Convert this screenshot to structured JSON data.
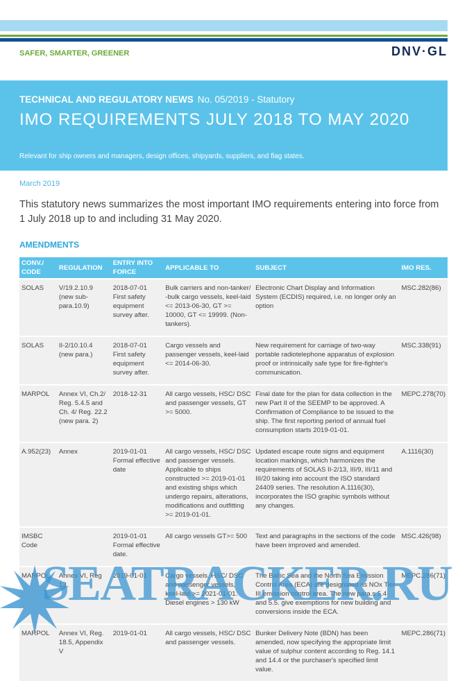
{
  "header": {
    "tagline": "SAFER, SMARTER, GREENER",
    "logo": "DNV·GL"
  },
  "banner": {
    "series": "TECHNICAL AND REGULATORY NEWS",
    "issue": "No. 05/2019  -  Statutory",
    "title": "IMO REQUIREMENTS JULY 2018 TO MAY 2020",
    "relevant": "Relevant for ship owners and managers, design offices, shipyards, suppliers, and flag states."
  },
  "date": "March 2019",
  "intro": "This statutory news summarizes the most important IMO requirements entering into force from 1 July 2018 up to and including 31 May 2020.",
  "section": "AMENDMENTS",
  "table": {
    "headers": [
      "CONV./ CODE",
      "REGULATION",
      "ENTRY INTO FORCE",
      "APPLICABLE TO",
      "SUBJECT",
      "IMO RES."
    ],
    "rows": [
      [
        "SOLAS",
        "V/19.2.10.9 (new sub-para.10.9)",
        "2018-07-01 First safety equipment survey after.",
        "Bulk carriers and non-tanker/ -bulk cargo vessels, keel-laid <= 2013-06-30, GT >= 10000, GT <= 19999. (Non-tankers).",
        "Electronic Chart Display and Information System (ECDIS) required, i.e. no longer only an option",
        "MSC.282(86)"
      ],
      [
        "SOLAS",
        "II-2/10.10.4 (new para.)",
        "2018-07-01 First safety equipment survey after.",
        "Cargo vessels and passenger vessels, keel-laid <= 2014-06-30.",
        "New requirement for carriage of two-way portable radiotelephone apparatus of explosion proof or intrinsically safe type for fire-fighter's communication.",
        "MSC.338(91)"
      ],
      [
        "MARPOL",
        "Annex VI, Ch.2/ Reg. 5.4.5 and Ch. 4/ Reg. 22.2 (new para. 2)",
        "2018-12-31",
        "All cargo vessels, HSC/ DSC and passenger vessels, GT >= 5000.",
        "Final date for the plan for data collection in the new Part II of the SEEMP to be approved. A Confirmation of Compliance to be issued to the ship. The first reporting period of annual fuel consumption starts 2019-01-01.",
        "MEPC.278(70)"
      ],
      [
        "A.952(23)",
        "Annex",
        "2019-01-01 Formal effective date",
        "All cargo vessels, HSC/ DSC and passenger vessels. Applicable to ships constructed >= 2019-01-01 and existing ships which undergo repairs, alterations, modifications and outfitting >= 2019-01-01.",
        "Updated escape route signs and equipment location markings, which harmonizes the requirements of SOLAS II-2/13, III/9, III/11 and III/20 taking into account the ISO standard 24409 series. The resolution A.1116(30), incorporates the ISO graphic symbols without any changes.",
        "A.1116(30)"
      ],
      [
        "IMSBC Code",
        "",
        "2019-01-01 Formal effective date.",
        "All cargo vessels GT>= 500",
        "Text and paragraphs in the sections of the code have been improved and amended.",
        "MSC.426(98)"
      ],
      [
        "MARPOL",
        "Annex VI, Reg 13",
        "2019-01-01",
        "Cargo vessels, HSC/ DSC and passenger vessels, keel-laid >= 2021-01-01. Diesel engines > 130 kW",
        "The Baltic Sea and the North Sea Emission Control Area (ECA) are designated as NOx Tier III emission control area. The new para.s 5.4 and 5.5. give exemptions for new building and conversions inside the ECA.",
        "MEPC.286(71)"
      ],
      [
        "MARPOL",
        "Annex VI, Reg. 18.5, Appendix V",
        "2019-01-01",
        "All cargo vessels, HSC/ DSC and passenger vessels.",
        "Bunker Delivery Note (BDN) has been amended, now specifying the appropriate limit value of sulphur content according to Reg. 14.1 and 14.4 or the purchaser's specified limit value.",
        "MEPC.286(71)"
      ]
    ]
  },
  "watermark": "SEATRACKER.RU"
}
